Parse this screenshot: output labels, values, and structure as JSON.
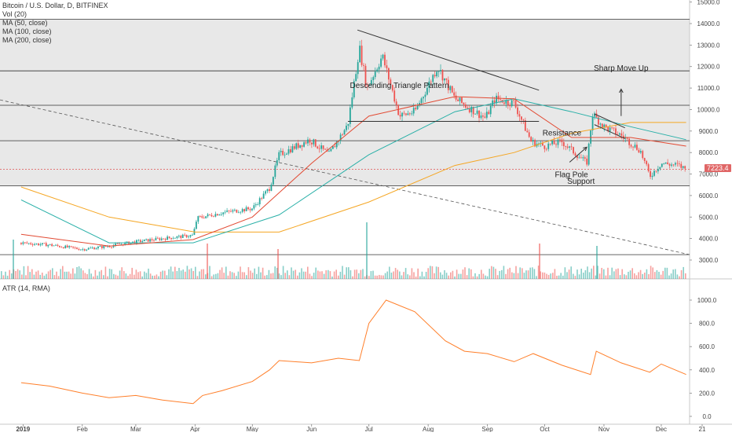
{
  "chart_data": [
    {
      "type": "candlestick",
      "title": "Bitcoin / U.S. Dollar, D, BITFINEX",
      "indicators": [
        "Vol (20)",
        "MA (50, close)",
        "MA (100, close)",
        "MA (200, close)"
      ],
      "x_ticks": [
        "2019",
        "Feb",
        "Mar",
        "Apr",
        "May",
        "Jun",
        "Jul",
        "Aug",
        "Sep",
        "Oct",
        "Nov",
        "Dec",
        "21"
      ],
      "y_ticks": [
        "15000.0",
        "14000.0",
        "13000.0",
        "12000.0",
        "11000.0",
        "10000.0",
        "9000.0",
        "8000.0",
        "7000.0",
        "6000.0",
        "5000.0",
        "4000.0",
        "3000.0"
      ],
      "ylim": [
        2100,
        15000
      ],
      "current_price_label": "7223.4",
      "horizontal_levels": [
        14200,
        11800,
        10200,
        8550,
        6450,
        3250
      ],
      "close_path": [
        [
          "2018-12-31",
          3800
        ],
        [
          "2019-01-15",
          3700
        ],
        [
          "2019-02-01",
          3500
        ],
        [
          "2019-02-15",
          3650
        ],
        [
          "2019-03-01",
          3850
        ],
        [
          "2019-03-15",
          4000
        ],
        [
          "2019-03-31",
          4150
        ],
        [
          "2019-04-02",
          4950
        ],
        [
          "2019-04-15",
          5200
        ],
        [
          "2019-05-01",
          5400
        ],
        [
          "2019-05-10",
          6350
        ],
        [
          "2019-05-15",
          7900
        ],
        [
          "2019-05-31",
          8600
        ],
        [
          "2019-06-10",
          7900
        ],
        [
          "2019-06-20",
          9300
        ],
        [
          "2019-06-26",
          12900
        ],
        [
          "2019-06-30",
          11000
        ],
        [
          "2019-07-08",
          12500
        ],
        [
          "2019-07-17",
          9700
        ],
        [
          "2019-07-25",
          9900
        ],
        [
          "2019-08-06",
          12000
        ],
        [
          "2019-08-15",
          10500
        ],
        [
          "2019-08-31",
          9600
        ],
        [
          "2019-09-05",
          10500
        ],
        [
          "2019-09-15",
          10300
        ],
        [
          "2019-09-24",
          8500
        ],
        [
          "2019-10-01",
          8300
        ],
        [
          "2019-10-10",
          8500
        ],
        [
          "2019-10-23",
          7500
        ],
        [
          "2019-10-26",
          9800
        ],
        [
          "2019-11-01",
          9200
        ],
        [
          "2019-11-10",
          8800
        ],
        [
          "2019-11-20",
          8100
        ],
        [
          "2019-11-25",
          6900
        ],
        [
          "2019-12-01",
          7500
        ],
        [
          "2019-12-10",
          7400
        ],
        [
          "2019-12-14",
          7223
        ]
      ],
      "ma50_path": [
        [
          "2018-12-31",
          4200
        ],
        [
          "2019-02-15",
          3650
        ],
        [
          "2019-03-31",
          3950
        ],
        [
          "2019-05-01",
          5000
        ],
        [
          "2019-06-01",
          7500
        ],
        [
          "2019-07-01",
          9700
        ],
        [
          "2019-08-15",
          10600
        ],
        [
          "2019-09-15",
          10500
        ],
        [
          "2019-10-15",
          8700
        ],
        [
          "2019-11-15",
          8700
        ],
        [
          "2019-12-14",
          8300
        ]
      ],
      "ma100_path": [
        [
          "2018-12-31",
          5800
        ],
        [
          "2019-02-15",
          3800
        ],
        [
          "2019-03-31",
          3800
        ],
        [
          "2019-05-15",
          5100
        ],
        [
          "2019-07-01",
          7900
        ],
        [
          "2019-08-15",
          9900
        ],
        [
          "2019-09-15",
          10500
        ],
        [
          "2019-10-15",
          9900
        ],
        [
          "2019-11-15",
          9200
        ],
        [
          "2019-12-14",
          8600
        ]
      ],
      "ma200_path": [
        [
          "2018-12-31",
          6400
        ],
        [
          "2019-02-15",
          5000
        ],
        [
          "2019-04-01",
          4300
        ],
        [
          "2019-05-15",
          4300
        ],
        [
          "2019-07-01",
          5700
        ],
        [
          "2019-08-15",
          7400
        ],
        [
          "2019-09-15",
          8000
        ],
        [
          "2019-10-15",
          8900
        ],
        [
          "2019-11-15",
          9400
        ],
        [
          "2019-12-14",
          9400
        ]
      ],
      "annotations": [
        {
          "text": "Descending Triangle Pattern",
          "date": "2019-07-17",
          "price": 11000
        },
        {
          "text": "Sharp Move Up",
          "date": "2019-11-10",
          "price": 11800
        },
        {
          "text": "Resistance",
          "date": "2019-10-10",
          "price": 8800
        },
        {
          "text": "Flag Pole",
          "date": "2019-10-15",
          "price": 6850
        },
        {
          "text": "Support",
          "date": "2019-10-20",
          "price": 6550
        }
      ],
      "colors": {
        "up": "#26a69a",
        "down": "#ef5350",
        "ma50": "#e24a33",
        "ma100": "#2ab0a8",
        "ma200": "#f5a623",
        "price_label": "#e06666"
      }
    },
    {
      "type": "line",
      "title": "ATR (14, RMA)",
      "y_ticks": [
        "1000.0",
        "800.0",
        "600.0",
        "400.0",
        "200.0",
        "0.0"
      ],
      "ylim": [
        0,
        1120
      ],
      "x": [
        "2018-12-31",
        "2019-01-15",
        "2019-02-01",
        "2019-02-15",
        "2019-03-01",
        "2019-03-15",
        "2019-03-31",
        "2019-04-05",
        "2019-04-15",
        "2019-05-01",
        "2019-05-10",
        "2019-05-15",
        "2019-06-01",
        "2019-06-15",
        "2019-06-26",
        "2019-07-01",
        "2019-07-10",
        "2019-07-25",
        "2019-08-10",
        "2019-08-20",
        "2019-09-01",
        "2019-09-15",
        "2019-09-25",
        "2019-10-10",
        "2019-10-25",
        "2019-10-28",
        "2019-11-10",
        "2019-11-25",
        "2019-12-01",
        "2019-12-14"
      ],
      "y": [
        290,
        260,
        200,
        160,
        180,
        140,
        110,
        180,
        220,
        300,
        400,
        480,
        460,
        500,
        480,
        800,
        1000,
        900,
        650,
        560,
        540,
        470,
        540,
        440,
        360,
        560,
        460,
        380,
        450,
        360
      ],
      "color": "#ff7f2a"
    }
  ]
}
